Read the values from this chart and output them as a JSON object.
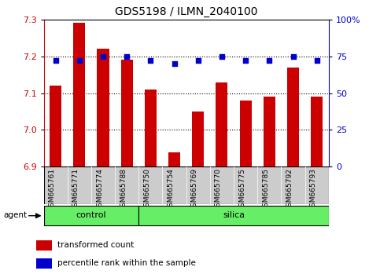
{
  "title": "GDS5198 / ILMN_2040100",
  "samples": [
    "GSM665761",
    "GSM665771",
    "GSM665774",
    "GSM665788",
    "GSM665750",
    "GSM665754",
    "GSM665769",
    "GSM665770",
    "GSM665775",
    "GSM665785",
    "GSM665792",
    "GSM665793"
  ],
  "bar_values": [
    7.12,
    7.29,
    7.22,
    7.19,
    7.11,
    6.94,
    7.05,
    7.13,
    7.08,
    7.09,
    7.17,
    7.09
  ],
  "dot_values": [
    72,
    72,
    75,
    75,
    72,
    70,
    72,
    75,
    72,
    72,
    75,
    72
  ],
  "groups": [
    {
      "label": "control",
      "start": 0,
      "end": 3
    },
    {
      "label": "silica",
      "start": 4,
      "end": 11
    }
  ],
  "ylim": [
    6.9,
    7.3
  ],
  "y2lim": [
    0,
    100
  ],
  "yticks": [
    6.9,
    7.0,
    7.1,
    7.2,
    7.3
  ],
  "y2ticks": [
    0,
    25,
    50,
    75,
    100
  ],
  "y2ticklabels": [
    "0",
    "25",
    "50",
    "75",
    "100%"
  ],
  "bar_color": "#cc0000",
  "dot_color": "#0000cc",
  "bar_width": 0.5,
  "tick_area_color": "#cccccc",
  "group_bar_color": "#66ee66",
  "group_bar_border": "#000000",
  "agent_label": "agent",
  "legend_bar_label": "transformed count",
  "legend_dot_label": "percentile rank within the sample",
  "title_fontsize": 10,
  "tick_fontsize": 8,
  "group_label_fontsize": 8,
  "legend_fontsize": 7.5
}
